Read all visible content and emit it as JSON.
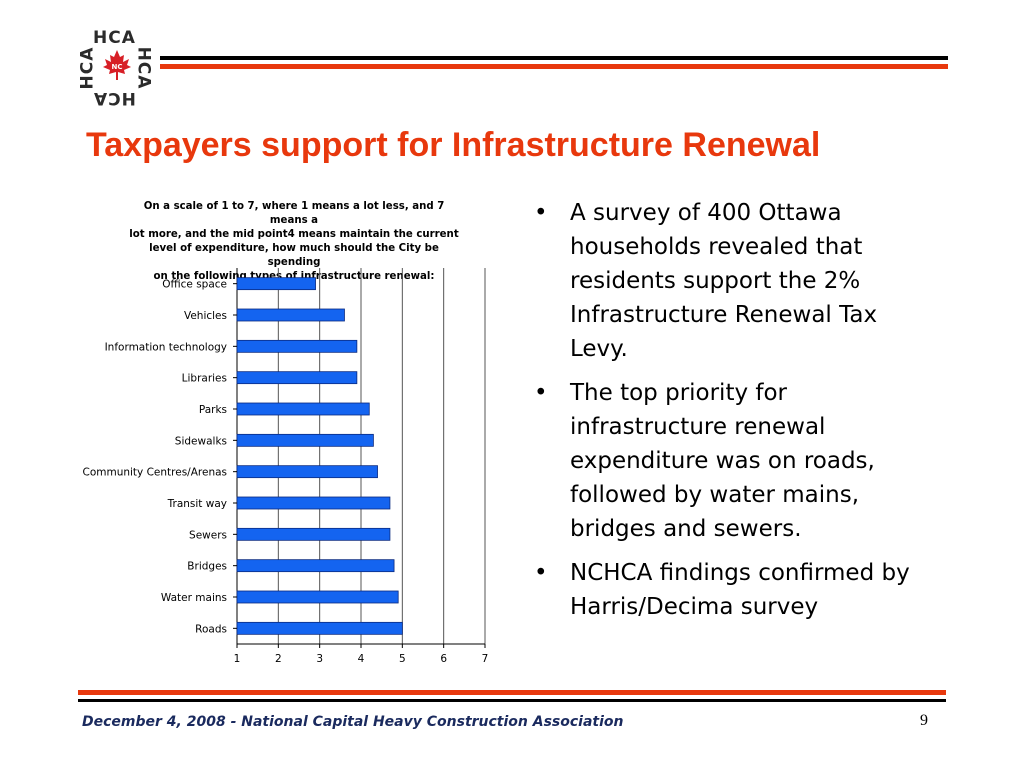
{
  "logo": {
    "top_text": "HCA",
    "bottom_text": "HCA",
    "left_text": "HCA",
    "right_text": "HCA",
    "center_text": "NC",
    "colors": {
      "leaf": "#d71f26",
      "text": "#2b2b2b"
    }
  },
  "slide_title": "Taxpayers support for Infrastructure Renewal",
  "colors": {
    "title": "#e8380d",
    "rule_orange": "#e8380d",
    "rule_black": "#000000",
    "bar": "#1464f0",
    "footer": "#1a2a5e"
  },
  "chart_data": {
    "type": "bar",
    "orientation": "horizontal",
    "title": "On a scale of 1 to 7, where 1 means a lot less, and 7 means a lot more, and the mid point4 means maintain the current level of expenditure, how much should the City be spending on the following types of infrastructure renewal:",
    "title_lines": [
      "On a scale of 1 to 7, where 1 means a lot less, and 7 means a",
      "lot more, and the mid point4 means maintain the current",
      "level of expenditure, how much should the City be spending",
      "on the following types of infrastructure renewal:"
    ],
    "categories": [
      "Office space",
      "Vehicles",
      "Information technology",
      "Libraries",
      "Parks",
      "Sidewalks",
      "Community Centres/Arenas",
      "Transit way",
      "Sewers",
      "Bridges",
      "Water mains",
      "Roads"
    ],
    "values": [
      2.9,
      3.6,
      3.9,
      3.9,
      4.2,
      4.3,
      4.4,
      4.7,
      4.7,
      4.8,
      4.9,
      5.0
    ],
    "xlim": [
      1,
      7
    ],
    "ticks": [
      "1",
      "2",
      "3",
      "4",
      "5",
      "6",
      "7"
    ],
    "grid": true,
    "xlabel": "",
    "ylabel": ""
  },
  "bullets": [
    "A survey of 400 Ottawa households revealed that residents support the 2% Infrastructure Renewal Tax Levy.",
    "The top priority for infrastructure renewal expenditure was on roads, followed by water mains, bridges and sewers.",
    "NCHCA findings confirmed by Harris/Decima survey"
  ],
  "bullet_symbol": "•",
  "footer": "December 4, 2008 - National Capital Heavy Construction Association",
  "page_number": "9"
}
